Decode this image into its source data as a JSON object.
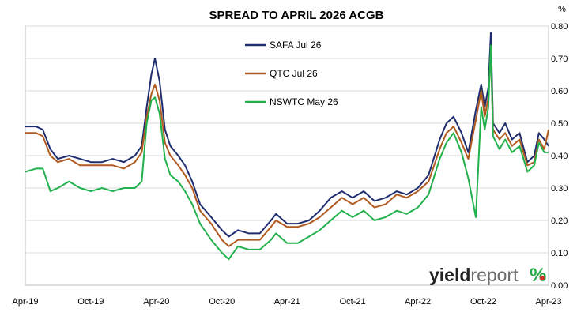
{
  "chart_data": {
    "type": "line",
    "title": "SPREAD TO APRIL 2026 ACGB",
    "y_unit": "%",
    "ylim": [
      0.0,
      0.8
    ],
    "y_ticks": [
      "0.00",
      "0.10",
      "0.20",
      "0.30",
      "0.40",
      "0.50",
      "0.60",
      "0.70",
      "0.80"
    ],
    "x_ticks": [
      "Apr-19",
      "Oct-19",
      "Apr-20",
      "Oct-20",
      "Apr-21",
      "Oct-21",
      "Apr-22",
      "Oct-22",
      "Apr-23"
    ],
    "x_tick_dates": [
      "2019-04-01",
      "2019-10-01",
      "2020-04-01",
      "2020-10-01",
      "2021-04-01",
      "2021-10-01",
      "2022-04-01",
      "2022-10-01",
      "2023-04-01"
    ],
    "x_range": [
      "2019-04-01",
      "2023-04-01"
    ],
    "grid": true,
    "legend_position": "top-center",
    "series": [
      {
        "name": "SAFA Jul 26",
        "color": "#1f2d6e",
        "points": [
          [
            "2019-04-01",
            0.49
          ],
          [
            "2019-05-01",
            0.49
          ],
          [
            "2019-05-20",
            0.48
          ],
          [
            "2019-06-10",
            0.42
          ],
          [
            "2019-07-01",
            0.39
          ],
          [
            "2019-08-01",
            0.4
          ],
          [
            "2019-09-01",
            0.39
          ],
          [
            "2019-10-01",
            0.38
          ],
          [
            "2019-11-01",
            0.38
          ],
          [
            "2019-12-01",
            0.39
          ],
          [
            "2020-01-01",
            0.38
          ],
          [
            "2020-02-01",
            0.4
          ],
          [
            "2020-02-20",
            0.43
          ],
          [
            "2020-03-05",
            0.55
          ],
          [
            "2020-03-18",
            0.65
          ],
          [
            "2020-03-28",
            0.7
          ],
          [
            "2020-04-10",
            0.63
          ],
          [
            "2020-04-25",
            0.48
          ],
          [
            "2020-05-10",
            0.43
          ],
          [
            "2020-06-01",
            0.4
          ],
          [
            "2020-06-20",
            0.37
          ],
          [
            "2020-07-10",
            0.32
          ],
          [
            "2020-08-01",
            0.25
          ],
          [
            "2020-09-01",
            0.21
          ],
          [
            "2020-10-01",
            0.17
          ],
          [
            "2020-10-20",
            0.15
          ],
          [
            "2020-11-15",
            0.17
          ],
          [
            "2020-12-15",
            0.16
          ],
          [
            "2021-01-15",
            0.16
          ],
          [
            "2021-02-15",
            0.2
          ],
          [
            "2021-03-01",
            0.22
          ],
          [
            "2021-04-01",
            0.19
          ],
          [
            "2021-05-01",
            0.19
          ],
          [
            "2021-06-01",
            0.2
          ],
          [
            "2021-07-01",
            0.23
          ],
          [
            "2021-08-01",
            0.27
          ],
          [
            "2021-09-01",
            0.29
          ],
          [
            "2021-10-01",
            0.27
          ],
          [
            "2021-11-01",
            0.29
          ],
          [
            "2021-12-01",
            0.26
          ],
          [
            "2022-01-01",
            0.27
          ],
          [
            "2022-02-01",
            0.29
          ],
          [
            "2022-03-01",
            0.28
          ],
          [
            "2022-04-01",
            0.3
          ],
          [
            "2022-05-01",
            0.34
          ],
          [
            "2022-06-01",
            0.45
          ],
          [
            "2022-06-20",
            0.5
          ],
          [
            "2022-07-10",
            0.52
          ],
          [
            "2022-08-01",
            0.47
          ],
          [
            "2022-08-20",
            0.41
          ],
          [
            "2022-09-10",
            0.54
          ],
          [
            "2022-09-25",
            0.62
          ],
          [
            "2022-10-05",
            0.55
          ],
          [
            "2022-10-15",
            0.61
          ],
          [
            "2022-10-22",
            0.78
          ],
          [
            "2022-10-28",
            0.5
          ],
          [
            "2022-11-15",
            0.47
          ],
          [
            "2022-12-01",
            0.5
          ],
          [
            "2022-12-20",
            0.45
          ],
          [
            "2023-01-10",
            0.47
          ],
          [
            "2023-02-01",
            0.38
          ],
          [
            "2023-02-20",
            0.4
          ],
          [
            "2023-03-05",
            0.47
          ],
          [
            "2023-03-20",
            0.45
          ],
          [
            "2023-04-01",
            0.43
          ]
        ]
      },
      {
        "name": "QTC Jul 26",
        "color": "#b05a20",
        "points": [
          [
            "2019-04-01",
            0.47
          ],
          [
            "2019-05-01",
            0.47
          ],
          [
            "2019-05-20",
            0.46
          ],
          [
            "2019-06-10",
            0.4
          ],
          [
            "2019-07-01",
            0.38
          ],
          [
            "2019-08-01",
            0.39
          ],
          [
            "2019-09-01",
            0.37
          ],
          [
            "2019-10-01",
            0.37
          ],
          [
            "2019-11-01",
            0.37
          ],
          [
            "2019-12-01",
            0.37
          ],
          [
            "2020-01-01",
            0.36
          ],
          [
            "2020-02-01",
            0.38
          ],
          [
            "2020-02-20",
            0.41
          ],
          [
            "2020-03-05",
            0.52
          ],
          [
            "2020-03-18",
            0.59
          ],
          [
            "2020-03-28",
            0.62
          ],
          [
            "2020-04-10",
            0.57
          ],
          [
            "2020-04-25",
            0.44
          ],
          [
            "2020-05-10",
            0.4
          ],
          [
            "2020-06-01",
            0.37
          ],
          [
            "2020-06-20",
            0.34
          ],
          [
            "2020-07-10",
            0.3
          ],
          [
            "2020-08-01",
            0.23
          ],
          [
            "2020-09-01",
            0.19
          ],
          [
            "2020-10-01",
            0.14
          ],
          [
            "2020-10-20",
            0.12
          ],
          [
            "2020-11-15",
            0.14
          ],
          [
            "2020-12-15",
            0.14
          ],
          [
            "2021-01-15",
            0.14
          ],
          [
            "2021-02-15",
            0.18
          ],
          [
            "2021-03-01",
            0.2
          ],
          [
            "2021-04-01",
            0.18
          ],
          [
            "2021-05-01",
            0.18
          ],
          [
            "2021-06-01",
            0.19
          ],
          [
            "2021-07-01",
            0.21
          ],
          [
            "2021-08-01",
            0.24
          ],
          [
            "2021-09-01",
            0.27
          ],
          [
            "2021-10-01",
            0.25
          ],
          [
            "2021-11-01",
            0.27
          ],
          [
            "2021-12-01",
            0.24
          ],
          [
            "2022-01-01",
            0.25
          ],
          [
            "2022-02-01",
            0.28
          ],
          [
            "2022-03-01",
            0.27
          ],
          [
            "2022-04-01",
            0.29
          ],
          [
            "2022-05-01",
            0.32
          ],
          [
            "2022-06-01",
            0.42
          ],
          [
            "2022-06-20",
            0.47
          ],
          [
            "2022-07-10",
            0.49
          ],
          [
            "2022-08-01",
            0.44
          ],
          [
            "2022-08-20",
            0.39
          ],
          [
            "2022-09-10",
            0.51
          ],
          [
            "2022-09-25",
            0.6
          ],
          [
            "2022-10-05",
            0.52
          ],
          [
            "2022-10-15",
            0.58
          ],
          [
            "2022-10-22",
            0.72
          ],
          [
            "2022-10-28",
            0.48
          ],
          [
            "2022-11-15",
            0.45
          ],
          [
            "2022-12-01",
            0.47
          ],
          [
            "2022-12-20",
            0.43
          ],
          [
            "2023-01-10",
            0.45
          ],
          [
            "2023-02-01",
            0.37
          ],
          [
            "2023-02-20",
            0.38
          ],
          [
            "2023-03-05",
            0.45
          ],
          [
            "2023-03-20",
            0.42
          ],
          [
            "2023-04-01",
            0.48
          ]
        ]
      },
      {
        "name": "NSWTC May 26",
        "color": "#22b14c",
        "points": [
          [
            "2019-04-01",
            0.35
          ],
          [
            "2019-05-01",
            0.36
          ],
          [
            "2019-05-20",
            0.36
          ],
          [
            "2019-06-10",
            0.29
          ],
          [
            "2019-07-01",
            0.3
          ],
          [
            "2019-08-01",
            0.32
          ],
          [
            "2019-09-01",
            0.3
          ],
          [
            "2019-10-01",
            0.29
          ],
          [
            "2019-11-01",
            0.3
          ],
          [
            "2019-12-01",
            0.29
          ],
          [
            "2020-01-01",
            0.3
          ],
          [
            "2020-02-01",
            0.3
          ],
          [
            "2020-02-20",
            0.32
          ],
          [
            "2020-03-05",
            0.5
          ],
          [
            "2020-03-18",
            0.57
          ],
          [
            "2020-03-28",
            0.58
          ],
          [
            "2020-04-10",
            0.53
          ],
          [
            "2020-04-25",
            0.39
          ],
          [
            "2020-05-10",
            0.34
          ],
          [
            "2020-06-01",
            0.32
          ],
          [
            "2020-06-20",
            0.29
          ],
          [
            "2020-07-10",
            0.25
          ],
          [
            "2020-08-01",
            0.19
          ],
          [
            "2020-09-01",
            0.14
          ],
          [
            "2020-10-01",
            0.1
          ],
          [
            "2020-10-20",
            0.08
          ],
          [
            "2020-11-15",
            0.12
          ],
          [
            "2020-12-15",
            0.11
          ],
          [
            "2021-01-15",
            0.11
          ],
          [
            "2021-02-15",
            0.14
          ],
          [
            "2021-03-01",
            0.16
          ],
          [
            "2021-04-01",
            0.13
          ],
          [
            "2021-05-01",
            0.13
          ],
          [
            "2021-06-01",
            0.15
          ],
          [
            "2021-07-01",
            0.17
          ],
          [
            "2021-08-01",
            0.2
          ],
          [
            "2021-09-01",
            0.23
          ],
          [
            "2021-10-01",
            0.21
          ],
          [
            "2021-11-01",
            0.23
          ],
          [
            "2021-12-01",
            0.2
          ],
          [
            "2022-01-01",
            0.21
          ],
          [
            "2022-02-01",
            0.23
          ],
          [
            "2022-03-01",
            0.22
          ],
          [
            "2022-04-01",
            0.24
          ],
          [
            "2022-05-01",
            0.28
          ],
          [
            "2022-06-01",
            0.39
          ],
          [
            "2022-06-20",
            0.44
          ],
          [
            "2022-07-10",
            0.47
          ],
          [
            "2022-08-01",
            0.41
          ],
          [
            "2022-08-20",
            0.33
          ],
          [
            "2022-09-10",
            0.21
          ],
          [
            "2022-09-25",
            0.55
          ],
          [
            "2022-10-05",
            0.48
          ],
          [
            "2022-10-15",
            0.55
          ],
          [
            "2022-10-22",
            0.74
          ],
          [
            "2022-10-28",
            0.46
          ],
          [
            "2022-11-15",
            0.42
          ],
          [
            "2022-12-01",
            0.45
          ],
          [
            "2022-12-20",
            0.41
          ],
          [
            "2023-01-10",
            0.43
          ],
          [
            "2023-02-01",
            0.35
          ],
          [
            "2023-02-20",
            0.37
          ],
          [
            "2023-03-05",
            0.44
          ],
          [
            "2023-03-20",
            0.41
          ],
          [
            "2023-04-01",
            0.41
          ]
        ]
      }
    ]
  },
  "brand": {
    "part1": "yield",
    "part2": "report",
    "symbol": "%",
    "color_dark": "#222222",
    "color_light": "#6b6b6b",
    "color_accent_green": "#2aa84a",
    "color_accent_red": "#d0312d"
  }
}
